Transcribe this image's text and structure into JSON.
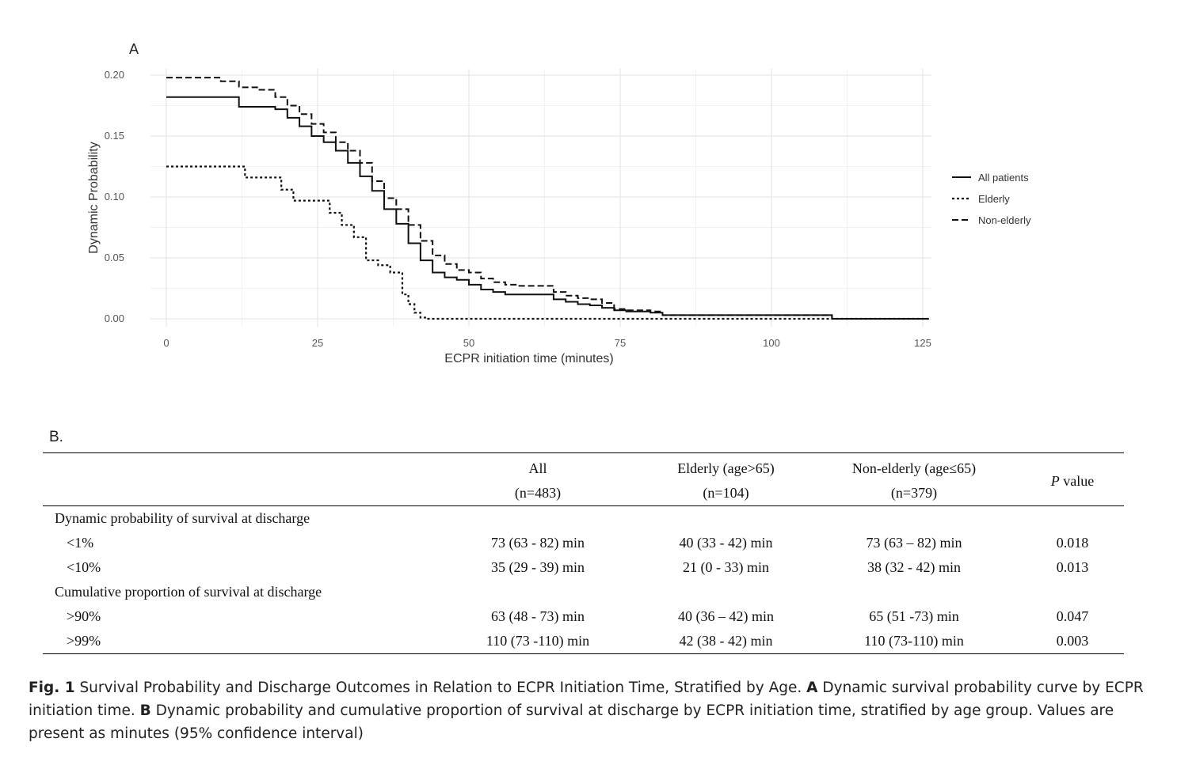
{
  "panel_a_label": "A",
  "panel_b_label": "B.",
  "chart_data": {
    "type": "line",
    "title": "",
    "xlabel": "ECPR initiation time (minutes)",
    "ylabel": "Dynamic Probability",
    "xlim": [
      0,
      125
    ],
    "ylim": [
      0,
      0.2
    ],
    "x_ticks": [
      0,
      25,
      50,
      75,
      100,
      125
    ],
    "y_ticks": [
      0.0,
      0.05,
      0.1,
      0.15,
      0.2
    ],
    "x_tick_labels": [
      "0",
      "25",
      "50",
      "75",
      "100",
      "125"
    ],
    "y_tick_labels": [
      "0.00",
      "0.05",
      "0.10",
      "0.15",
      "0.20"
    ],
    "legend_position": "right",
    "series": [
      {
        "name": "All patients",
        "style": "solid",
        "x": [
          0,
          7,
          12,
          16,
          18,
          20,
          22,
          24,
          26,
          28,
          30,
          32,
          34,
          36,
          38,
          40,
          42,
          44,
          46,
          48,
          50,
          52,
          54,
          56,
          58,
          62,
          64,
          66,
          68,
          70,
          72,
          74,
          76,
          80,
          82,
          85,
          90,
          100,
          108,
          110,
          118,
          126
        ],
        "y": [
          0.182,
          0.182,
          0.174,
          0.174,
          0.172,
          0.165,
          0.158,
          0.15,
          0.145,
          0.138,
          0.128,
          0.117,
          0.105,
          0.09,
          0.078,
          0.062,
          0.048,
          0.038,
          0.034,
          0.032,
          0.028,
          0.024,
          0.022,
          0.02,
          0.02,
          0.02,
          0.016,
          0.014,
          0.012,
          0.011,
          0.009,
          0.007,
          0.006,
          0.005,
          0.003,
          0.003,
          0.003,
          0.003,
          0.003,
          0.0,
          0.0,
          0.0
        ]
      },
      {
        "name": "Elderly",
        "style": "dotted",
        "x": [
          0,
          11,
          13,
          17,
          19,
          21,
          23,
          25,
          27,
          29,
          31,
          33,
          35,
          37,
          39,
          40,
          41,
          42,
          43,
          50,
          75,
          100,
          126
        ],
        "y": [
          0.125,
          0.125,
          0.116,
          0.116,
          0.106,
          0.097,
          0.097,
          0.097,
          0.087,
          0.077,
          0.067,
          0.048,
          0.044,
          0.038,
          0.02,
          0.012,
          0.005,
          0.001,
          0.0,
          0.0,
          0.0,
          0.0,
          0.0
        ]
      },
      {
        "name": "Non-elderly",
        "style": "dashed",
        "x": [
          0,
          6,
          9,
          12,
          15,
          18,
          20,
          22,
          24,
          26,
          28,
          30,
          32,
          34,
          36,
          38,
          40,
          42,
          44,
          46,
          48,
          50,
          52,
          54,
          56,
          58,
          62,
          64,
          66,
          68,
          70,
          72,
          74,
          76,
          80,
          82,
          85,
          100,
          108,
          110,
          118,
          126
        ],
        "y": [
          0.198,
          0.198,
          0.195,
          0.19,
          0.188,
          0.182,
          0.175,
          0.168,
          0.16,
          0.153,
          0.145,
          0.138,
          0.128,
          0.113,
          0.099,
          0.09,
          0.077,
          0.064,
          0.052,
          0.045,
          0.04,
          0.038,
          0.033,
          0.03,
          0.028,
          0.027,
          0.027,
          0.022,
          0.019,
          0.017,
          0.016,
          0.013,
          0.008,
          0.007,
          0.006,
          0.003,
          0.003,
          0.003,
          0.003,
          0.0,
          0.0,
          0.0
        ]
      }
    ]
  },
  "table": {
    "header_row1": [
      "",
      "All",
      "Elderly (age>65)",
      "Non-elderly (age≤65)"
    ],
    "header_row2": [
      "",
      "(n=483)",
      "(n=104)",
      "(n=379)"
    ],
    "p_header_italic": "P",
    "p_header_rest": " value",
    "section1": "Dynamic probability of survival at discharge",
    "row1": [
      "<1%",
      "73 (63 - 82) min",
      "40 (33 - 42) min",
      "73 (63 – 82) min",
      "0.018"
    ],
    "row2": [
      "<10%",
      "35 (29 - 39) min",
      "21 (0 - 33) min",
      "38 (32 - 42) min",
      "0.013"
    ],
    "section2": "Cumulative proportion of survival at discharge",
    "row3": [
      ">90%",
      "63 (48 - 73) min",
      "40 (36 – 42) min",
      "65 (51 -73) min",
      "0.047"
    ],
    "row4": [
      ">99%",
      "110 (73 -110) min",
      "42 (38 - 42) min",
      "110 (73-110) min",
      "0.003"
    ]
  },
  "caption": {
    "fig_label": "Fig. 1",
    "title_text": " Survival Probability and Discharge Outcomes in Relation to ECPR Initiation Time, Stratified by Age. ",
    "a_label": "A",
    "a_text": " Dynamic survival probability curve by ECPR initiation time. ",
    "b_label": "B",
    "b_text": " Dynamic probability and cumulative proportion of survival at discharge by ECPR initiation time, stratified by age group. Values are present as minutes (95% confidence interval)"
  }
}
